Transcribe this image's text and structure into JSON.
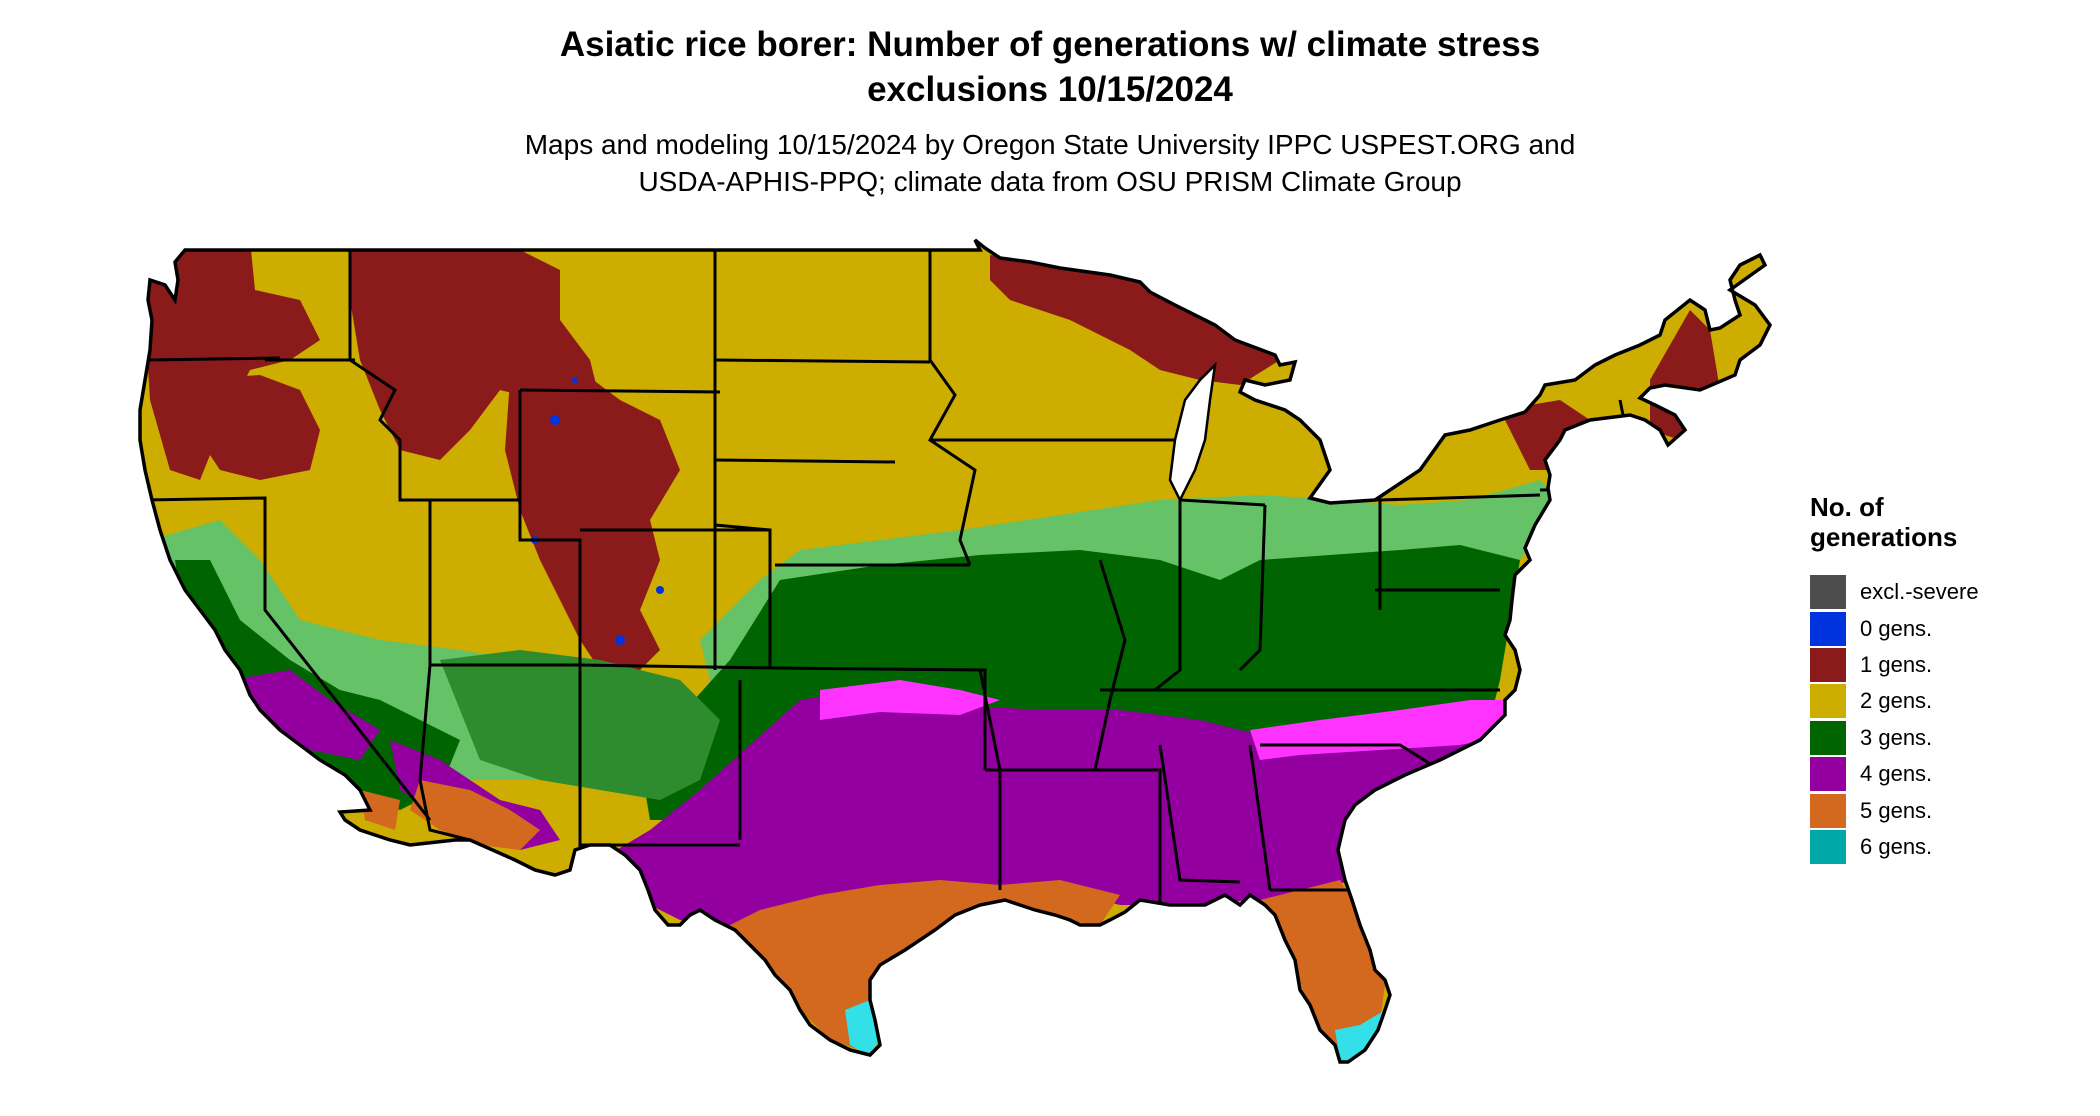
{
  "title": {
    "line1": "Asiatic rice borer: Number of generations w/ climate stress",
    "line2": "exclusions 10/15/2024"
  },
  "subtitle": {
    "line1": "Maps and modeling 10/15/2024 by Oregon State University IPPC USPEST.ORG and",
    "line2": "USDA-APHIS-PPQ; climate data from OSU PRISM Climate Group"
  },
  "legend": {
    "title_line1": "No. of",
    "title_line2": "generations",
    "items": [
      {
        "label": "excl.-severe",
        "color": "#4d4d4d"
      },
      {
        "label": "0 gens.",
        "color": "#0033dd"
      },
      {
        "label": "1 gens.",
        "color": "#8b1a1a"
      },
      {
        "label": "2 gens.",
        "color": "#ccad00"
      },
      {
        "label": "3 gens.",
        "color": "#006400"
      },
      {
        "label": "4 gens.",
        "color": "#9400a0"
      },
      {
        "label": "5 gens.",
        "color": "#d2691e"
      },
      {
        "label": "6 gens.",
        "color": "#00a8a8"
      }
    ]
  },
  "map_colors": {
    "light_green": "#66c266",
    "mid_green": "#2e8b2e",
    "magenta": "#ff33ff",
    "light_orange": "#f0a050",
    "cyan": "#33e0e8",
    "red_orange": "#d2401a",
    "state_border": "#000000"
  }
}
